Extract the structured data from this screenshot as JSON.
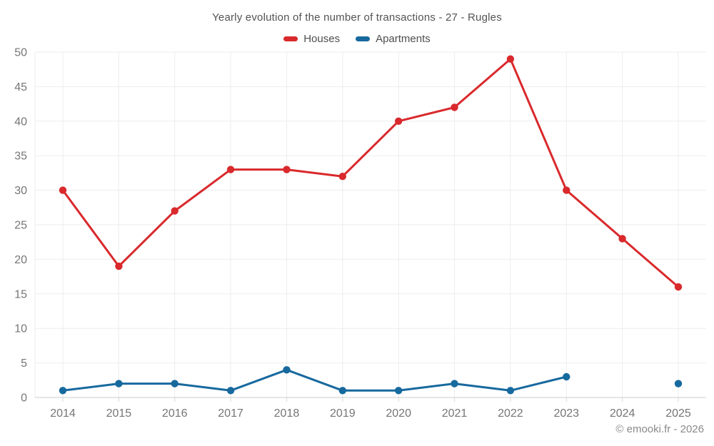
{
  "title": "Yearly evolution of the number of transactions - 27 - Rugles",
  "footer": "© emooki.fr - 2026",
  "legend": {
    "items": [
      {
        "label": "Houses",
        "color": "#d9292c"
      },
      {
        "label": "Apartments",
        "color": "#17699e"
      }
    ]
  },
  "chart_data": {
    "type": "line",
    "title": "Yearly evolution of the number of transactions - 27 - Rugles",
    "categories": [
      "2014",
      "2015",
      "2016",
      "2017",
      "2018",
      "2019",
      "2020",
      "2021",
      "2022",
      "2023",
      "2024",
      "2025"
    ],
    "series": [
      {
        "name": "Houses",
        "color": "#d9292c",
        "values": [
          30,
          19,
          27,
          33,
          33,
          32,
          40,
          42,
          49,
          30,
          23,
          16
        ]
      },
      {
        "name": "Apartments",
        "color": "#17699e",
        "values": [
          1,
          2,
          2,
          1,
          4,
          1,
          1,
          2,
          1,
          3,
          null,
          2
        ]
      }
    ],
    "xlabel": "",
    "ylabel": "",
    "ylim": [
      0,
      50
    ],
    "ytick_step": 5,
    "grid": true,
    "legend_position": "top",
    "colors": {
      "grid_line": "#ededed",
      "axis_line": "#cccccc",
      "tick_mark": "#dadada",
      "tick_label": "#757575"
    }
  }
}
